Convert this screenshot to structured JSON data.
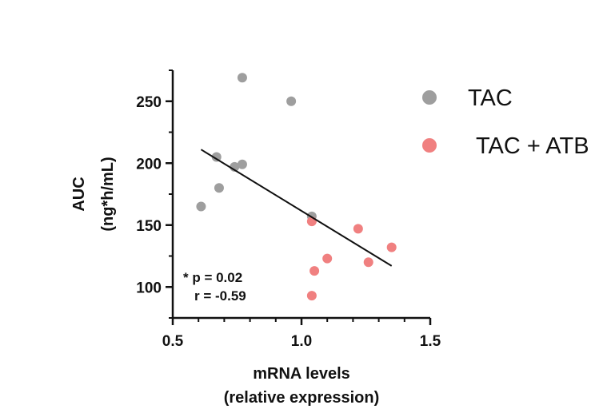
{
  "chart_data": {
    "type": "scatter",
    "xlabel": [
      "mRNA levels",
      "(relative expression)"
    ],
    "ylabel": [
      "AUC",
      "(ng*h/mL)"
    ],
    "xlim": [
      0.5,
      1.5
    ],
    "ylim": [
      75,
      275
    ],
    "x_ticks": [
      0.5,
      1.0,
      1.5
    ],
    "x_tick_labels": [
      "0.5",
      "1.0",
      "1.5"
    ],
    "y_ticks": [
      100,
      150,
      200,
      250
    ],
    "y_tick_labels": [
      "100",
      "150",
      "200",
      "250"
    ],
    "grid": false,
    "legend_position": "right",
    "series": [
      {
        "name": "TAC",
        "color": "#9e9e9e",
        "points": [
          {
            "x": 0.61,
            "y": 165
          },
          {
            "x": 0.67,
            "y": 205
          },
          {
            "x": 0.68,
            "y": 180
          },
          {
            "x": 0.74,
            "y": 197
          },
          {
            "x": 0.77,
            "y": 199
          },
          {
            "x": 0.77,
            "y": 269
          },
          {
            "x": 0.96,
            "y": 250
          },
          {
            "x": 1.04,
            "y": 157
          }
        ]
      },
      {
        "name": "TAC + ATB",
        "color": "#f08080",
        "points": [
          {
            "x": 1.04,
            "y": 153
          },
          {
            "x": 1.04,
            "y": 93
          },
          {
            "x": 1.05,
            "y": 113
          },
          {
            "x": 1.1,
            "y": 123
          },
          {
            "x": 1.22,
            "y": 147
          },
          {
            "x": 1.26,
            "y": 120
          },
          {
            "x": 1.35,
            "y": 132
          }
        ]
      }
    ],
    "regression_line": {
      "x1": 0.61,
      "y1": 211,
      "x2": 1.35,
      "y2": 117
    },
    "annotations": [
      "* p = 0.02",
      "r = -0.59"
    ]
  }
}
